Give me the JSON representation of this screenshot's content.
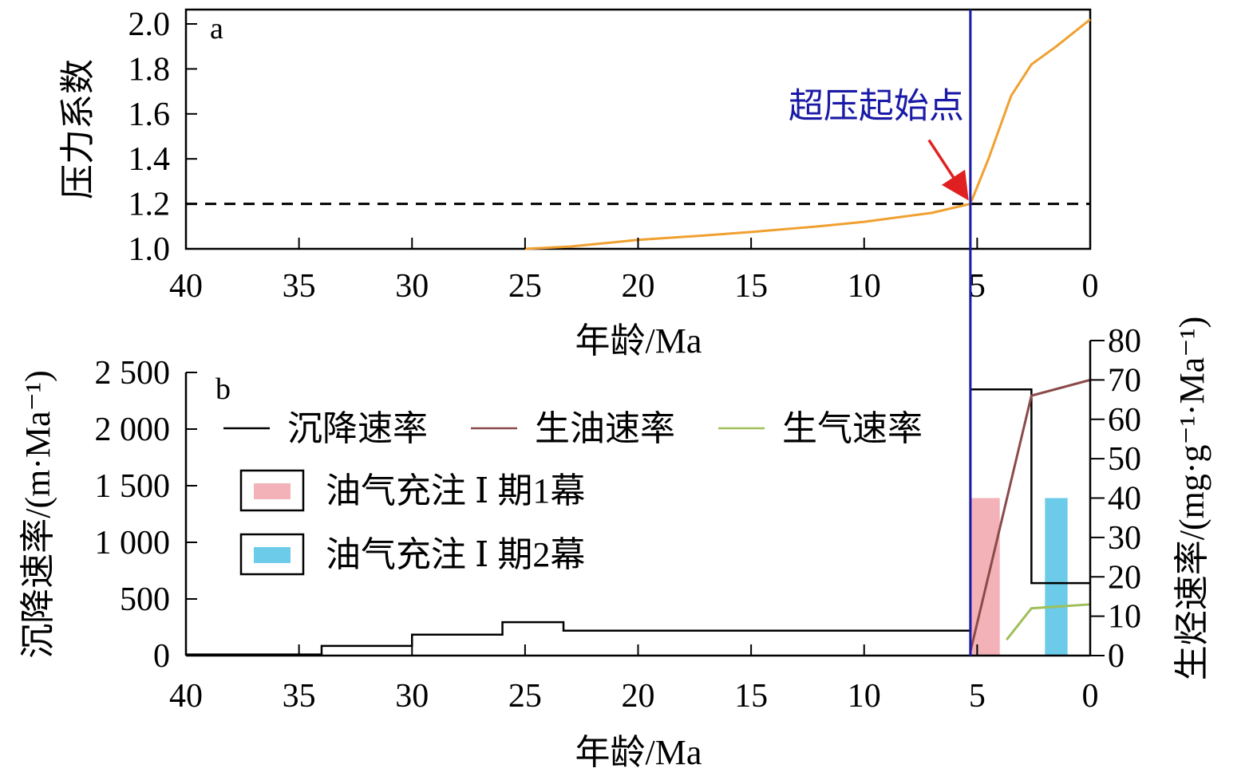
{
  "chart_data": [
    {
      "type": "line",
      "panel_label": "a",
      "xlabel": "年龄/Ma",
      "ylabel": "压力系数",
      "xlim": [
        40,
        0
      ],
      "ylim": [
        1.0,
        2.1
      ],
      "x_ticks": [
        40,
        35,
        30,
        25,
        20,
        15,
        10,
        5,
        0
      ],
      "y_ticks": [
        "1.0",
        "1.2",
        "1.4",
        "1.6",
        "1.8",
        "2.0"
      ],
      "series": [
        {
          "color": "#f0a030",
          "x": [
            25,
            23,
            20,
            17,
            15,
            12,
            10,
            7,
            5.3,
            4.5,
            3.5,
            2.6,
            1.5,
            0
          ],
          "y": [
            1.0,
            1.01,
            1.04,
            1.06,
            1.075,
            1.1,
            1.12,
            1.16,
            1.2,
            1.4,
            1.68,
            1.82,
            1.9,
            2.02
          ]
        }
      ],
      "reference_line": {
        "y": 1.2,
        "style": "dashed",
        "color": "#000000"
      },
      "vertical_line": {
        "x": 5.3,
        "color": "#1a1aa6"
      },
      "annotation": {
        "text": "超压起始点",
        "point": [
          5.3,
          1.2
        ],
        "text_color": "#1a1aa6",
        "arrow_color": "#e02020"
      }
    },
    {
      "type": "line",
      "panel_label": "b",
      "xlabel": "年龄/Ma",
      "ylabel_left": "沉降速率/(m·Ma⁻¹)",
      "ylabel_right": "生烃速率/(mg·g⁻¹·Ma⁻¹)",
      "xlim": [
        40,
        0
      ],
      "ylim_left": [
        0,
        2500
      ],
      "ylim_right": [
        0,
        80
      ],
      "x_ticks": [
        40,
        35,
        30,
        25,
        20,
        15,
        10,
        5,
        0
      ],
      "y_ticks_left": [
        {
          "value": 0,
          "label": "0"
        },
        {
          "value": 500,
          "label": "500"
        },
        {
          "value": 1000,
          "label": "1 000"
        },
        {
          "value": 1500,
          "label": "1 500"
        },
        {
          "value": 2000,
          "label": "2 000"
        },
        {
          "value": 2500,
          "label": "2 500"
        }
      ],
      "y_ticks_right": [
        0,
        10,
        20,
        30,
        40,
        50,
        60,
        70,
        80
      ],
      "legend": {
        "lines": [
          {
            "label": "沉降速率",
            "color": "#000000"
          },
          {
            "label": "生油速率",
            "color": "#8b4a4a"
          },
          {
            "label": "生气速率",
            "color": "#9fbf5a"
          }
        ],
        "boxes": [
          {
            "label": "油气充注 Ⅰ 期1幕",
            "color": "#f3b2b8"
          },
          {
            "label": "油气充注 Ⅰ 期2幕",
            "color": "#6ccbe8"
          }
        ]
      },
      "series": [
        {
          "name": "沉降速率",
          "axis": "left",
          "color": "#000000",
          "step": true,
          "x": [
            40,
            34,
            34,
            30,
            30,
            26,
            26,
            23.3,
            23.3,
            5.3,
            5.3,
            2.6,
            2.6,
            0
          ],
          "y": [
            10,
            10,
            85,
            85,
            185,
            185,
            295,
            295,
            220,
            220,
            2350,
            2350,
            640,
            640
          ]
        },
        {
          "name": "生油速率",
          "axis": "right",
          "color": "#8b4a4a",
          "x": [
            5.3,
            2.6,
            0
          ],
          "y": [
            1,
            66,
            70
          ]
        },
        {
          "name": "生气速率",
          "axis": "right",
          "color": "#9fbf5a",
          "x": [
            3.7,
            2.6,
            0
          ],
          "y": [
            4,
            12,
            13
          ]
        }
      ],
      "zero_segment": {
        "x": [
          23.3,
          5.3
        ],
        "y": 0
      },
      "bars": [
        {
          "label": "油气充注 Ⅰ 期1幕",
          "x0": 5.3,
          "x1": 4.0,
          "height_right": 40,
          "color": "#f3b2b8"
        },
        {
          "label": "油气充注 Ⅰ 期2幕",
          "x0": 2.0,
          "x1": 1.0,
          "height_right": 40,
          "color": "#6ccbe8"
        }
      ]
    }
  ]
}
